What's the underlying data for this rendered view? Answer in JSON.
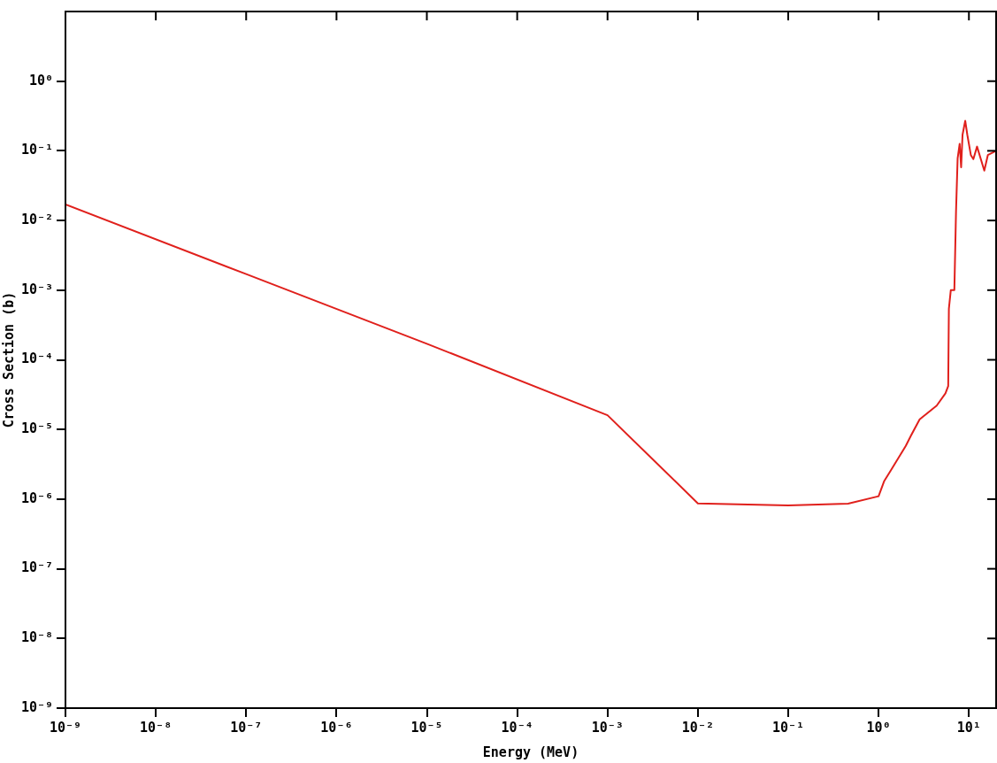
{
  "chart_data": {
    "type": "line",
    "xlabel": "Energy (MeV)",
    "ylabel": "Cross Section (b)",
    "log": "xy",
    "grid": false,
    "legend": false,
    "marker": "none",
    "line_style": "solid",
    "xlim": [
      1e-09,
      20
    ],
    "ylim": [
      1e-09,
      10
    ],
    "xticks": [
      {
        "value": 1e-09,
        "label": "10⁻⁹"
      },
      {
        "value": 1e-08,
        "label": "10⁻⁸"
      },
      {
        "value": 1e-07,
        "label": "10⁻⁷"
      },
      {
        "value": 1e-06,
        "label": "10⁻⁶"
      },
      {
        "value": 1e-05,
        "label": "10⁻⁵"
      },
      {
        "value": 0.0001,
        "label": "10⁻⁴"
      },
      {
        "value": 0.001,
        "label": "10⁻³"
      },
      {
        "value": 0.01,
        "label": "10⁻²"
      },
      {
        "value": 0.1,
        "label": "10⁻¹"
      },
      {
        "value": 1,
        "label": "10⁰"
      },
      {
        "value": 10,
        "label": "10¹"
      }
    ],
    "yticks": [
      {
        "value": 1e-09,
        "label": "10⁻⁹"
      },
      {
        "value": 1e-08,
        "label": "10⁻⁸"
      },
      {
        "value": 1e-07,
        "label": "10⁻⁷"
      },
      {
        "value": 1e-06,
        "label": "10⁻⁶"
      },
      {
        "value": 1e-05,
        "label": "10⁻⁵"
      },
      {
        "value": 0.0001,
        "label": "10⁻⁴"
      },
      {
        "value": 0.001,
        "label": "10⁻³"
      },
      {
        "value": 0.01,
        "label": "10⁻²"
      },
      {
        "value": 0.1,
        "label": "10⁻¹"
      },
      {
        "value": 1,
        "label": "10⁰"
      }
    ],
    "series": [
      {
        "color": "#e0201c",
        "x": [
          1e-09,
          1e-07,
          1e-05,
          0.001,
          0.01,
          0.1,
          0.46,
          1,
          1.15,
          1.37,
          2.0,
          2.3,
          2.85,
          4.4,
          5.5,
          5.9,
          6.0,
          6.3,
          6.9,
          7.2,
          7.5,
          7.9,
          8.2,
          8.5,
          9.1,
          9.6,
          10.5,
          11.2,
          12.3,
          14.8,
          16.2,
          20
        ],
        "values": [
          0.017,
          0.0017,
          0.00017,
          1.6e-05,
          8.7e-07,
          8.1e-07,
          8.6e-07,
          1.1e-06,
          1.8e-06,
          2.6e-06,
          5.8e-06,
          8.3e-06,
          1.4e-05,
          2.2e-05,
          3.3e-05,
          4.2e-05,
          0.00054,
          0.001,
          0.001,
          0.0135,
          0.078,
          0.126,
          0.058,
          0.17,
          0.27,
          0.17,
          0.087,
          0.076,
          0.115,
          0.052,
          0.087,
          0.1
        ]
      }
    ]
  }
}
